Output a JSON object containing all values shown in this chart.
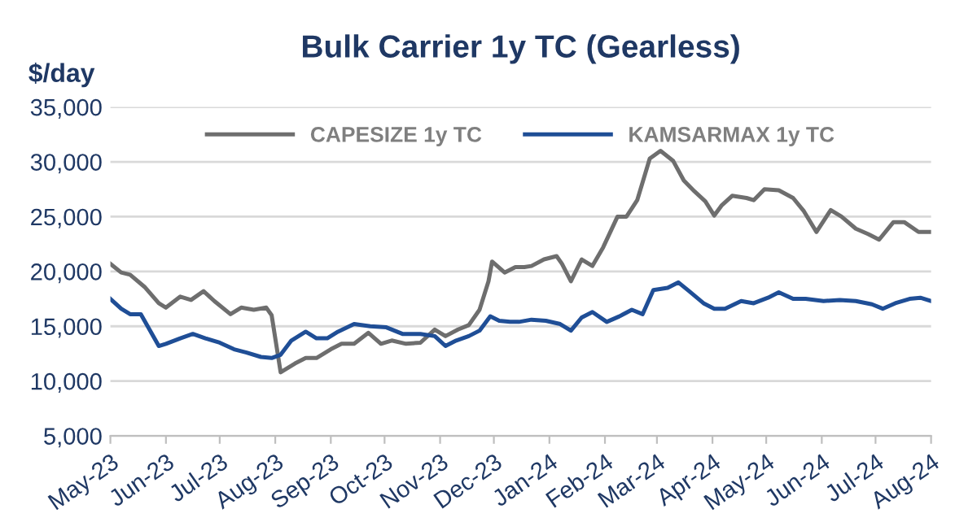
{
  "chart_data": {
    "type": "line",
    "title": "Bulk Carrier 1y TC (Gearless)",
    "ylabel": "$/day",
    "series": [
      {
        "name": "CAPESIZE 1y TC",
        "color": "#6e6e6e",
        "x": [
          "2023-05-01",
          "2023-05-07",
          "2023-05-12",
          "2023-05-20",
          "2023-05-28",
          "2023-06-01",
          "2023-06-09",
          "2023-06-15",
          "2023-06-22",
          "2023-06-28",
          "2023-07-07",
          "2023-07-13",
          "2023-07-20",
          "2023-07-27",
          "2023-07-30",
          "2023-08-04",
          "2023-08-12",
          "2023-08-18",
          "2023-08-24",
          "2023-09-01",
          "2023-09-07",
          "2023-09-14",
          "2023-09-22",
          "2023-09-29",
          "2023-10-05",
          "2023-10-13",
          "2023-10-21",
          "2023-10-29",
          "2023-11-04",
          "2023-11-11",
          "2023-11-17",
          "2023-11-23",
          "2023-11-28",
          "2023-11-30",
          "2023-12-07",
          "2023-12-13",
          "2023-12-18",
          "2023-12-22",
          "2023-12-29",
          "2024-01-05",
          "2024-01-08",
          "2024-01-13",
          "2024-01-19",
          "2024-01-25",
          "2024-01-31",
          "2024-02-08",
          "2024-02-13",
          "2024-02-19",
          "2024-02-26",
          "2024-03-03",
          "2024-03-10",
          "2024-03-16",
          "2024-03-22",
          "2024-03-28",
          "2024-04-02",
          "2024-04-06",
          "2024-04-12",
          "2024-04-20",
          "2024-04-24",
          "2024-04-30",
          "2024-05-08",
          "2024-05-16",
          "2024-05-22",
          "2024-05-29",
          "2024-06-06",
          "2024-06-12",
          "2024-06-20",
          "2024-06-27",
          "2024-07-03",
          "2024-07-11",
          "2024-07-17",
          "2024-07-25",
          "2024-08-01"
        ],
        "values": [
          20700,
          19900,
          19700,
          18600,
          17100,
          16700,
          17700,
          17400,
          18200,
          17300,
          16100,
          16700,
          16500,
          16700,
          16000,
          10800,
          11600,
          12100,
          12100,
          12900,
          13400,
          13400,
          14400,
          13400,
          13700,
          13400,
          13500,
          14700,
          14100,
          14700,
          15100,
          16500,
          19100,
          20900,
          19900,
          20400,
          20400,
          20500,
          21100,
          21400,
          20700,
          19100,
          21100,
          20500,
          22200,
          25000,
          25000,
          26500,
          30300,
          31000,
          30100,
          28300,
          27300,
          26400,
          25100,
          26000,
          26900,
          26700,
          26500,
          27500,
          27400,
          26700,
          25500,
          23600,
          25600,
          25000,
          23900,
          23400,
          22900,
          24500,
          24500,
          23600,
          23600
        ]
      },
      {
        "name": "KAMSARMAX 1y TC",
        "color": "#1f4e96",
        "x": [
          "2023-05-01",
          "2023-05-07",
          "2023-05-12",
          "2023-05-18",
          "2023-05-28",
          "2023-06-01",
          "2023-06-09",
          "2023-06-16",
          "2023-06-23",
          "2023-07-01",
          "2023-07-09",
          "2023-07-16",
          "2023-07-24",
          "2023-07-30",
          "2023-08-04",
          "2023-08-10",
          "2023-08-18",
          "2023-08-24",
          "2023-08-30",
          "2023-09-05",
          "2023-09-14",
          "2023-09-23",
          "2023-10-02",
          "2023-10-11",
          "2023-10-21",
          "2023-10-29",
          "2023-11-04",
          "2023-11-10",
          "2023-11-17",
          "2023-11-23",
          "2023-11-29",
          "2023-12-04",
          "2023-12-10",
          "2023-12-15",
          "2023-12-22",
          "2023-12-30",
          "2024-01-07",
          "2024-01-13",
          "2024-01-19",
          "2024-01-25",
          "2024-02-02",
          "2024-02-09",
          "2024-02-16",
          "2024-02-22",
          "2024-02-28",
          "2024-03-07",
          "2024-03-13",
          "2024-03-19",
          "2024-03-27",
          "2024-04-02",
          "2024-04-08",
          "2024-04-17",
          "2024-04-24",
          "2024-05-02",
          "2024-05-08",
          "2024-05-16",
          "2024-05-23",
          "2024-06-02",
          "2024-06-11",
          "2024-06-20",
          "2024-06-29",
          "2024-07-05",
          "2024-07-12",
          "2024-07-20",
          "2024-07-26",
          "2024-08-01"
        ],
        "values": [
          17500,
          16600,
          16100,
          16100,
          13200,
          13400,
          13900,
          14300,
          13900,
          13500,
          12900,
          12600,
          12200,
          12100,
          12400,
          13700,
          14500,
          13900,
          13900,
          14500,
          15200,
          15000,
          14900,
          14300,
          14300,
          14100,
          13200,
          13700,
          14100,
          14600,
          15900,
          15500,
          15400,
          15400,
          15600,
          15500,
          15200,
          14600,
          15800,
          16300,
          15400,
          15900,
          16500,
          16100,
          18300,
          18500,
          19000,
          18200,
          17100,
          16600,
          16600,
          17300,
          17100,
          17600,
          18100,
          17500,
          17500,
          17300,
          17400,
          17300,
          17000,
          16600,
          17100,
          17500,
          17600,
          17300
        ]
      }
    ],
    "xlim": [
      "2023-05-01",
      "2024-08-01"
    ],
    "xticks": [
      {
        "value": "2023-05-01",
        "label": "May-23"
      },
      {
        "value": "2023-06-01",
        "label": "Jun-23"
      },
      {
        "value": "2023-07-01",
        "label": "Jul-23"
      },
      {
        "value": "2023-08-01",
        "label": "Aug-23"
      },
      {
        "value": "2023-09-01",
        "label": "Sep-23"
      },
      {
        "value": "2023-10-01",
        "label": "Oct-23"
      },
      {
        "value": "2023-11-01",
        "label": "Nov-23"
      },
      {
        "value": "2023-12-01",
        "label": "Dec-23"
      },
      {
        "value": "2024-01-01",
        "label": "Jan-24"
      },
      {
        "value": "2024-02-01",
        "label": "Feb-24"
      },
      {
        "value": "2024-03-01",
        "label": "Mar-24"
      },
      {
        "value": "2024-04-01",
        "label": "Apr-24"
      },
      {
        "value": "2024-05-01",
        "label": "May-24"
      },
      {
        "value": "2024-06-01",
        "label": "Jun-24"
      },
      {
        "value": "2024-07-01",
        "label": "Jul-24"
      },
      {
        "value": "2024-08-01",
        "label": "Aug-24"
      }
    ],
    "ylim": [
      5000,
      35000
    ],
    "yticks": [
      {
        "value": 5000,
        "label": "5,000"
      },
      {
        "value": 10000,
        "label": "10,000"
      },
      {
        "value": 15000,
        "label": "15,000"
      },
      {
        "value": 20000,
        "label": "20,000"
      },
      {
        "value": 25000,
        "label": "25,000"
      },
      {
        "value": 30000,
        "label": "30,000"
      },
      {
        "value": 35000,
        "label": "35,000"
      }
    ],
    "grid": "y",
    "legend": "top",
    "marker": "none",
    "line_style": "solid"
  }
}
